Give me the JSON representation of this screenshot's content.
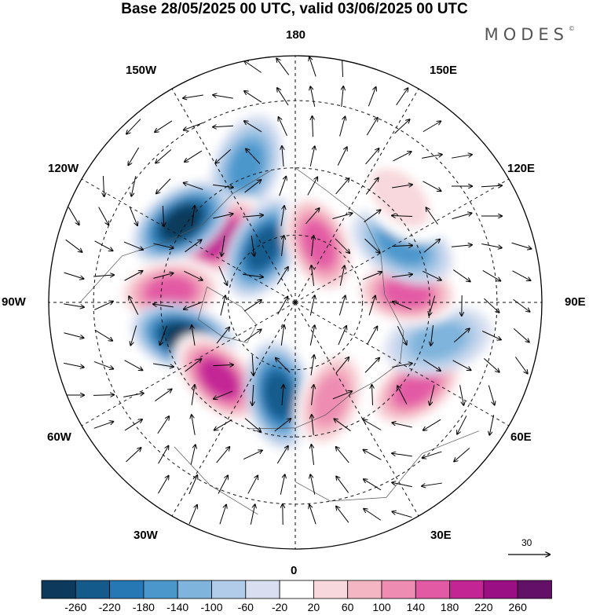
{
  "title": "Base 28/05/2025 00 UTC, valid 03/06/2025 00 UTC",
  "brand": {
    "name": "MODES",
    "mark": "©"
  },
  "longitude_labels": {
    "top": "180",
    "bottom": "0",
    "left": "90W",
    "right": "90E",
    "upper_left_1": "150W",
    "upper_left_2": "120W",
    "lower_left_1": "60W",
    "lower_left_2": "30W",
    "upper_right_1": "150E",
    "upper_right_2": "120E",
    "lower_right_1": "60E",
    "lower_right_2": "30E"
  },
  "vector_scale": {
    "label": "30"
  },
  "colorbar": {
    "colors": [
      "#0d3a5c",
      "#145b8c",
      "#2578b4",
      "#4b97cc",
      "#7fb4dc",
      "#b0cce8",
      "#d8dff0",
      "#ffffff",
      "#f8d8dc",
      "#f4b6c2",
      "#ee8cb2",
      "#e35aa4",
      "#c32595",
      "#9b0f85",
      "#621068"
    ],
    "ticks": [
      "-260",
      "-220",
      "-180",
      "-140",
      "-100",
      "-60",
      "-20",
      "20",
      "60",
      "100",
      "140",
      "180",
      "220",
      "260"
    ]
  },
  "anomaly_centers": [
    {
      "lon": -160,
      "colat": 32,
      "value": -150
    },
    {
      "lon": -130,
      "colat": 22,
      "value": 220
    },
    {
      "lon": -150,
      "colat": 14,
      "value": -230
    },
    {
      "lon": -125,
      "colat": 31,
      "value": -260
    },
    {
      "lon": -95,
      "colat": 28,
      "value": 200
    },
    {
      "lon": -72,
      "colat": 26,
      "value": -250
    },
    {
      "lon": -45,
      "colat": 24,
      "value": 210
    },
    {
      "lon": -10,
      "colat": 21,
      "value": -230
    },
    {
      "lon": 20,
      "colat": 23,
      "value": 150
    },
    {
      "lon": 55,
      "colat": 33,
      "value": 180
    },
    {
      "lon": 75,
      "colat": 33,
      "value": -120
    },
    {
      "lon": 95,
      "colat": 25,
      "value": 180
    },
    {
      "lon": 118,
      "colat": 27,
      "value": -150
    },
    {
      "lon": 158,
      "colat": 14,
      "value": 170
    },
    {
      "lon": 135,
      "colat": 33,
      "value": 70
    }
  ]
}
